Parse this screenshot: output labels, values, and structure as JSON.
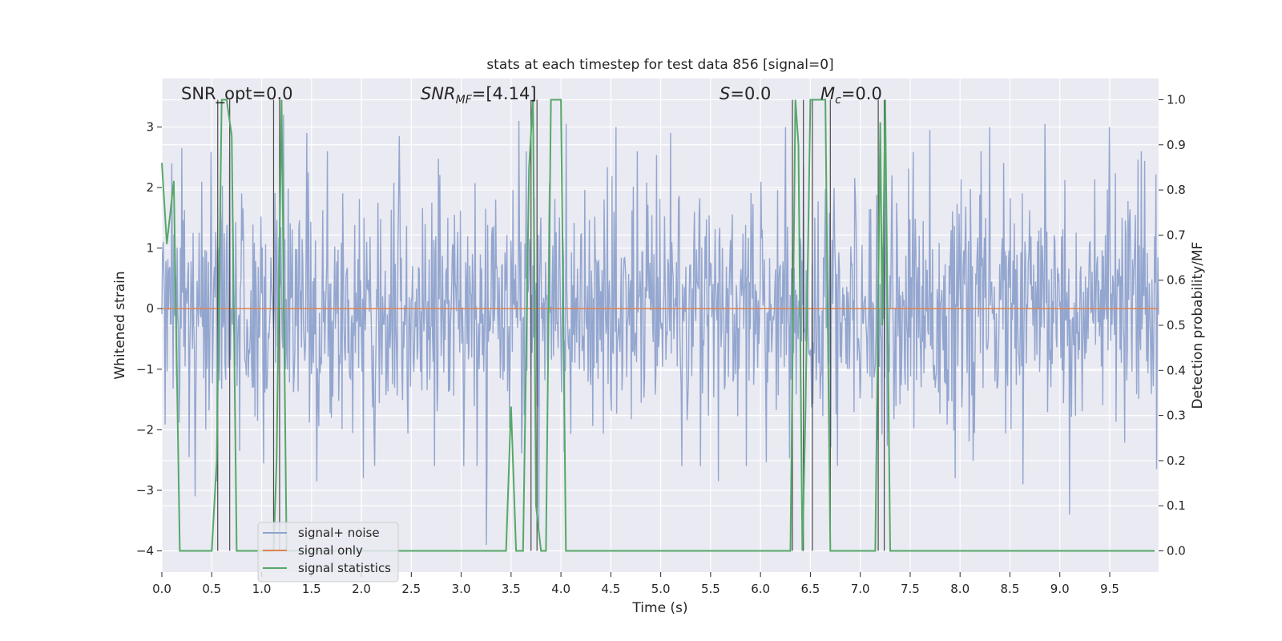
{
  "chart_data": {
    "type": "line",
    "title": "stats at each timestep for test data 856 [signal=0]",
    "xlabel": "Time (s)",
    "ylabel": "Whitened strain",
    "y2label": "Detection probability/MF",
    "xlim": [
      0,
      9.99
    ],
    "ylim": [
      -4.35,
      3.8
    ],
    "y2lim": [
      -0.047,
      1.047
    ],
    "xticks": [
      0.0,
      0.5,
      1.0,
      1.5,
      2.0,
      2.5,
      3.0,
      3.5,
      4.0,
      4.5,
      5.0,
      5.5,
      6.0,
      6.5,
      7.0,
      7.5,
      8.0,
      8.5,
      9.0,
      9.5
    ],
    "xtick_labels": [
      "0.0",
      "0.5",
      "1.0",
      "1.5",
      "2.0",
      "2.5",
      "3.0",
      "3.5",
      "4.0",
      "4.5",
      "5.0",
      "5.5",
      "6.0",
      "6.5",
      "7.0",
      "7.5",
      "8.0",
      "8.5",
      "9.0",
      "9.5"
    ],
    "yticks": [
      3,
      2,
      1,
      0,
      -1,
      -2,
      -3,
      -4
    ],
    "ytick_labels": [
      "3",
      "2",
      "1",
      "0",
      "−1",
      "−2",
      "−3",
      "−4"
    ],
    "y2ticks": [
      1.0,
      0.9,
      0.8,
      0.7,
      0.6,
      0.5,
      0.4,
      0.3,
      0.2,
      0.1,
      0.0
    ],
    "y2tick_labels": [
      "1.0",
      "0.9",
      "0.8",
      "0.7",
      "0.6",
      "0.5",
      "0.4",
      "0.3",
      "0.2",
      "0.1",
      "0.0"
    ],
    "grid": true,
    "legend_position": "lower-left",
    "annotations": {
      "snr_opt": "SNR_opt=0.0",
      "snr_mf_base": "SNR",
      "snr_mf_sub": "MF",
      "snr_mf_rest": "=[4.14]",
      "s_base": "S",
      "s_rest": "=0.0",
      "mc_base": "M",
      "mc_sub": "c",
      "mc_rest": "=0.0"
    },
    "noise_series": {
      "name": "signal+ noise",
      "color": "#8ea2cc",
      "sample_count": 1500,
      "std": 0.95,
      "spikes": [
        {
          "x": 0.1,
          "y": 2.4
        },
        {
          "x": 0.2,
          "y": 2.65
        },
        {
          "x": 0.27,
          "y": -2.45
        },
        {
          "x": 0.33,
          "y": -3.1
        },
        {
          "x": 0.55,
          "y": -2.85
        },
        {
          "x": 0.68,
          "y": 2.6
        },
        {
          "x": 0.78,
          "y": -2.35
        },
        {
          "x": 1.22,
          "y": 3.2
        },
        {
          "x": 1.45,
          "y": 2.9
        },
        {
          "x": 1.55,
          "y": -2.85
        },
        {
          "x": 2.02,
          "y": -2.8
        },
        {
          "x": 2.38,
          "y": 2.85
        },
        {
          "x": 3.25,
          "y": 3.15
        },
        {
          "x": 3.25,
          "y": -3.9
        },
        {
          "x": 3.58,
          "y": 3.1
        },
        {
          "x": 3.78,
          "y": -3.6
        },
        {
          "x": 4.05,
          "y": 3.05
        },
        {
          "x": 4.55,
          "y": 3.0
        },
        {
          "x": 5.1,
          "y": 2.9
        },
        {
          "x": 5.58,
          "y": -2.85
        },
        {
          "x": 6.25,
          "y": 3.0
        },
        {
          "x": 7.25,
          "y": 2.8
        },
        {
          "x": 7.7,
          "y": 2.95
        },
        {
          "x": 7.95,
          "y": -2.8
        },
        {
          "x": 8.3,
          "y": 3.0
        },
        {
          "x": 8.63,
          "y": -2.9
        },
        {
          "x": 8.85,
          "y": 3.05
        },
        {
          "x": 9.1,
          "y": -3.4
        },
        {
          "x": 9.5,
          "y": 3.0
        },
        {
          "x": 9.97,
          "y": -2.65
        }
      ]
    },
    "signal_only": {
      "name": "signal only",
      "color": "#dd8452",
      "value": 0
    },
    "stats_series": {
      "name": "signal statistics",
      "color": "#55a868",
      "x": [
        0.0,
        0.05,
        0.12,
        0.18,
        0.5,
        0.55,
        0.6,
        0.65,
        0.7,
        0.75,
        0.8,
        0.85,
        0.9,
        1.12,
        1.15,
        1.2,
        1.25,
        1.35,
        3.45,
        3.5,
        3.55,
        3.62,
        3.68,
        3.72,
        3.75,
        3.8,
        3.85,
        3.9,
        3.93,
        4.0,
        4.05,
        4.1,
        6.3,
        6.35,
        6.38,
        6.42,
        6.45,
        6.5,
        6.55,
        6.6,
        6.65,
        6.7,
        6.75,
        7.15,
        7.2,
        7.22,
        7.25,
        7.3,
        9.95
      ],
      "y": [
        0.86,
        0.68,
        0.82,
        0.0,
        0.0,
        0.2,
        1.0,
        1.0,
        0.92,
        0.0,
        0.0,
        0.0,
        0.0,
        0.0,
        0.2,
        1.0,
        0.0,
        0.0,
        0.0,
        0.32,
        0.0,
        0.0,
        0.85,
        1.0,
        0.1,
        0.0,
        0.0,
        1.0,
        1.0,
        1.0,
        0.0,
        0.0,
        0.0,
        1.0,
        0.9,
        0.0,
        0.3,
        1.0,
        1.0,
        1.0,
        1.0,
        0.0,
        0.0,
        0.0,
        0.95,
        0.5,
        1.0,
        0.0,
        0.0
      ]
    },
    "vlines": {
      "color": "#4a4a4a",
      "x": [
        0.56,
        0.68,
        1.12,
        1.18,
        3.7,
        3.76,
        6.32,
        6.43,
        6.52,
        6.7,
        7.18,
        7.24
      ],
      "y2_top": 1.0,
      "y2_bottom": 0.0
    }
  }
}
